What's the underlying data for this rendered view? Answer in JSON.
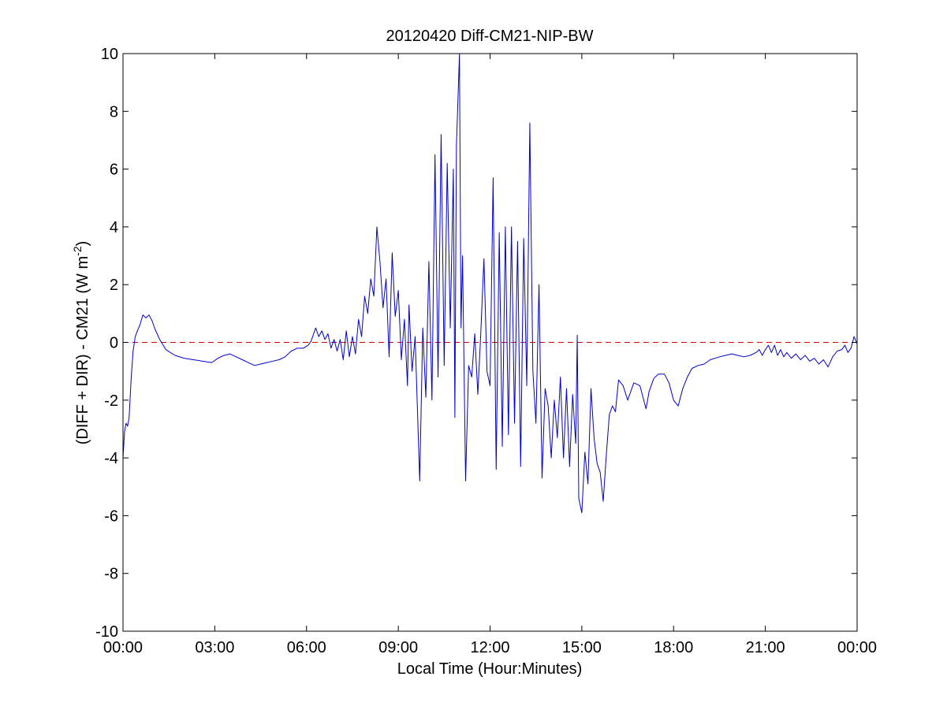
{
  "chart_data": {
    "type": "line",
    "title": "20120420 Diff-CM21-NIP-BW",
    "xlabel": "Local Time (Hour:Minutes)",
    "ylabel_main": "(DIFF + DIR) - CM21 (W m",
    "ylabel_sup": "-2",
    "ylabel_close": ")",
    "xlim": [
      0,
      24
    ],
    "ylim": [
      -10,
      10
    ],
    "xticks": [
      0,
      3,
      6,
      9,
      12,
      15,
      18,
      21,
      24
    ],
    "xtick_labels": [
      "00:00",
      "03:00",
      "06:00",
      "09:00",
      "12:00",
      "15:00",
      "18:00",
      "21:00",
      "00:00"
    ],
    "yticks": [
      -10,
      -8,
      -6,
      -4,
      -2,
      0,
      2,
      4,
      6,
      8,
      10
    ],
    "ytick_labels": [
      "-10",
      "-8",
      "-6",
      "-4",
      "-2",
      "0",
      "2",
      "4",
      "6",
      "8",
      "10"
    ],
    "grid": false,
    "reference_line": {
      "y": 0,
      "color": "#cc0000",
      "style": "dashed"
    },
    "series": [
      {
        "color": "#0000cc",
        "points": [
          [
            0.0,
            -4.0
          ],
          [
            0.05,
            -3.1
          ],
          [
            0.1,
            -2.8
          ],
          [
            0.15,
            -2.9
          ],
          [
            0.2,
            -2.6
          ],
          [
            0.27,
            -1.2
          ],
          [
            0.33,
            -0.3
          ],
          [
            0.4,
            0.2
          ],
          [
            0.47,
            0.4
          ],
          [
            0.55,
            0.6
          ],
          [
            0.65,
            0.95
          ],
          [
            0.75,
            0.85
          ],
          [
            0.85,
            0.95
          ],
          [
            0.95,
            0.75
          ],
          [
            1.05,
            0.45
          ],
          [
            1.2,
            0.1
          ],
          [
            1.4,
            -0.25
          ],
          [
            1.7,
            -0.45
          ],
          [
            2.0,
            -0.55
          ],
          [
            2.3,
            -0.6
          ],
          [
            2.6,
            -0.65
          ],
          [
            2.9,
            -0.7
          ],
          [
            3.1,
            -0.55
          ],
          [
            3.3,
            -0.45
          ],
          [
            3.5,
            -0.4
          ],
          [
            3.7,
            -0.5
          ],
          [
            3.9,
            -0.6
          ],
          [
            4.1,
            -0.7
          ],
          [
            4.3,
            -0.8
          ],
          [
            4.5,
            -0.75
          ],
          [
            4.7,
            -0.7
          ],
          [
            4.9,
            -0.65
          ],
          [
            5.1,
            -0.6
          ],
          [
            5.3,
            -0.5
          ],
          [
            5.5,
            -0.3
          ],
          [
            5.7,
            -0.2
          ],
          [
            5.9,
            -0.2
          ],
          [
            6.05,
            -0.1
          ],
          [
            6.15,
            0.05
          ],
          [
            6.3,
            0.5
          ],
          [
            6.4,
            0.2
          ],
          [
            6.5,
            0.4
          ],
          [
            6.6,
            0.1
          ],
          [
            6.7,
            0.3
          ],
          [
            6.8,
            -0.2
          ],
          [
            6.9,
            0.1
          ],
          [
            7.0,
            -0.3
          ],
          [
            7.1,
            0.1
          ],
          [
            7.2,
            -0.6
          ],
          [
            7.3,
            0.4
          ],
          [
            7.4,
            -0.5
          ],
          [
            7.5,
            0.2
          ],
          [
            7.6,
            -0.4
          ],
          [
            7.7,
            0.8
          ],
          [
            7.8,
            0.2
          ],
          [
            7.9,
            1.6
          ],
          [
            8.0,
            1.0
          ],
          [
            8.1,
            2.2
          ],
          [
            8.2,
            1.6
          ],
          [
            8.3,
            4.0
          ],
          [
            8.4,
            2.8
          ],
          [
            8.5,
            1.2
          ],
          [
            8.6,
            2.2
          ],
          [
            8.7,
            -0.5
          ],
          [
            8.8,
            3.1
          ],
          [
            8.9,
            0.9
          ],
          [
            9.0,
            1.8
          ],
          [
            9.1,
            -0.6
          ],
          [
            9.2,
            0.8
          ],
          [
            9.3,
            -1.5
          ],
          [
            9.35,
            1.3
          ],
          [
            9.45,
            -1.0
          ],
          [
            9.55,
            0.2
          ],
          [
            9.7,
            -4.8
          ],
          [
            9.8,
            0.5
          ],
          [
            9.9,
            -1.9
          ],
          [
            10.0,
            2.8
          ],
          [
            10.1,
            -2.0
          ],
          [
            10.2,
            6.5
          ],
          [
            10.3,
            -1.2
          ],
          [
            10.4,
            7.2
          ],
          [
            10.5,
            -0.8
          ],
          [
            10.6,
            6.2
          ],
          [
            10.7,
            0.5
          ],
          [
            10.8,
            6.0
          ],
          [
            10.85,
            -2.6
          ],
          [
            10.9,
            6.8
          ],
          [
            11.0,
            10.0
          ],
          [
            11.05,
            0.5
          ],
          [
            11.1,
            3.0
          ],
          [
            11.2,
            -4.8
          ],
          [
            11.3,
            -0.8
          ],
          [
            11.4,
            -1.2
          ],
          [
            11.5,
            0.3
          ],
          [
            11.6,
            -1.8
          ],
          [
            11.7,
            0.4
          ],
          [
            11.8,
            2.9
          ],
          [
            11.9,
            -1.0
          ],
          [
            12.0,
            -1.5
          ],
          [
            12.1,
            5.7
          ],
          [
            12.2,
            -4.4
          ],
          [
            12.3,
            3.8
          ],
          [
            12.4,
            -3.6
          ],
          [
            12.5,
            4.0
          ],
          [
            12.6,
            -3.2
          ],
          [
            12.7,
            4.0
          ],
          [
            12.8,
            -2.8
          ],
          [
            12.9,
            3.5
          ],
          [
            13.0,
            -4.3
          ],
          [
            13.1,
            3.6
          ],
          [
            13.2,
            -1.5
          ],
          [
            13.3,
            7.6
          ],
          [
            13.4,
            -1.0
          ],
          [
            13.5,
            -2.8
          ],
          [
            13.6,
            2.0
          ],
          [
            13.7,
            -4.7
          ],
          [
            13.8,
            -1.6
          ],
          [
            13.9,
            -2.2
          ],
          [
            14.0,
            -4.0
          ],
          [
            14.1,
            -2.0
          ],
          [
            14.2,
            -3.3
          ],
          [
            14.3,
            -1.2
          ],
          [
            14.4,
            -4.0
          ],
          [
            14.5,
            -1.6
          ],
          [
            14.6,
            -4.3
          ],
          [
            14.7,
            -1.8
          ],
          [
            14.8,
            -3.5
          ],
          [
            14.85,
            0.25
          ],
          [
            14.9,
            -5.4
          ],
          [
            15.0,
            -5.9
          ],
          [
            15.1,
            -3.8
          ],
          [
            15.2,
            -4.9
          ],
          [
            15.3,
            -1.6
          ],
          [
            15.4,
            -3.3
          ],
          [
            15.5,
            -4.2
          ],
          [
            15.6,
            -4.5
          ],
          [
            15.7,
            -5.5
          ],
          [
            15.8,
            -3.9
          ],
          [
            15.9,
            -2.5
          ],
          [
            16.0,
            -2.2
          ],
          [
            16.1,
            -2.4
          ],
          [
            16.2,
            -1.3
          ],
          [
            16.35,
            -1.5
          ],
          [
            16.5,
            -2.0
          ],
          [
            16.7,
            -1.4
          ],
          [
            16.9,
            -1.5
          ],
          [
            17.0,
            -1.9
          ],
          [
            17.1,
            -2.3
          ],
          [
            17.2,
            -1.7
          ],
          [
            17.35,
            -1.25
          ],
          [
            17.5,
            -1.1
          ],
          [
            17.7,
            -1.1
          ],
          [
            17.85,
            -1.4
          ],
          [
            18.0,
            -2.0
          ],
          [
            18.15,
            -2.2
          ],
          [
            18.3,
            -1.6
          ],
          [
            18.45,
            -1.2
          ],
          [
            18.6,
            -0.9
          ],
          [
            18.8,
            -0.8
          ],
          [
            19.0,
            -0.75
          ],
          [
            19.2,
            -0.6
          ],
          [
            19.5,
            -0.5
          ],
          [
            19.7,
            -0.45
          ],
          [
            19.9,
            -0.4
          ],
          [
            20.1,
            -0.45
          ],
          [
            20.3,
            -0.5
          ],
          [
            20.5,
            -0.45
          ],
          [
            20.7,
            -0.35
          ],
          [
            20.8,
            -0.25
          ],
          [
            20.9,
            -0.45
          ],
          [
            21.0,
            -0.25
          ],
          [
            21.1,
            -0.1
          ],
          [
            21.2,
            -0.35
          ],
          [
            21.3,
            -0.1
          ],
          [
            21.4,
            -0.45
          ],
          [
            21.5,
            -0.25
          ],
          [
            21.6,
            -0.5
          ],
          [
            21.7,
            -0.35
          ],
          [
            21.85,
            -0.55
          ],
          [
            22.0,
            -0.4
          ],
          [
            22.15,
            -0.6
          ],
          [
            22.3,
            -0.45
          ],
          [
            22.45,
            -0.65
          ],
          [
            22.6,
            -0.55
          ],
          [
            22.75,
            -0.75
          ],
          [
            22.9,
            -0.6
          ],
          [
            23.05,
            -0.85
          ],
          [
            23.2,
            -0.5
          ],
          [
            23.35,
            -0.3
          ],
          [
            23.5,
            -0.25
          ],
          [
            23.6,
            -0.1
          ],
          [
            23.7,
            -0.35
          ],
          [
            23.8,
            -0.2
          ],
          [
            23.9,
            0.2
          ],
          [
            24.0,
            -0.05
          ]
        ]
      }
    ]
  }
}
